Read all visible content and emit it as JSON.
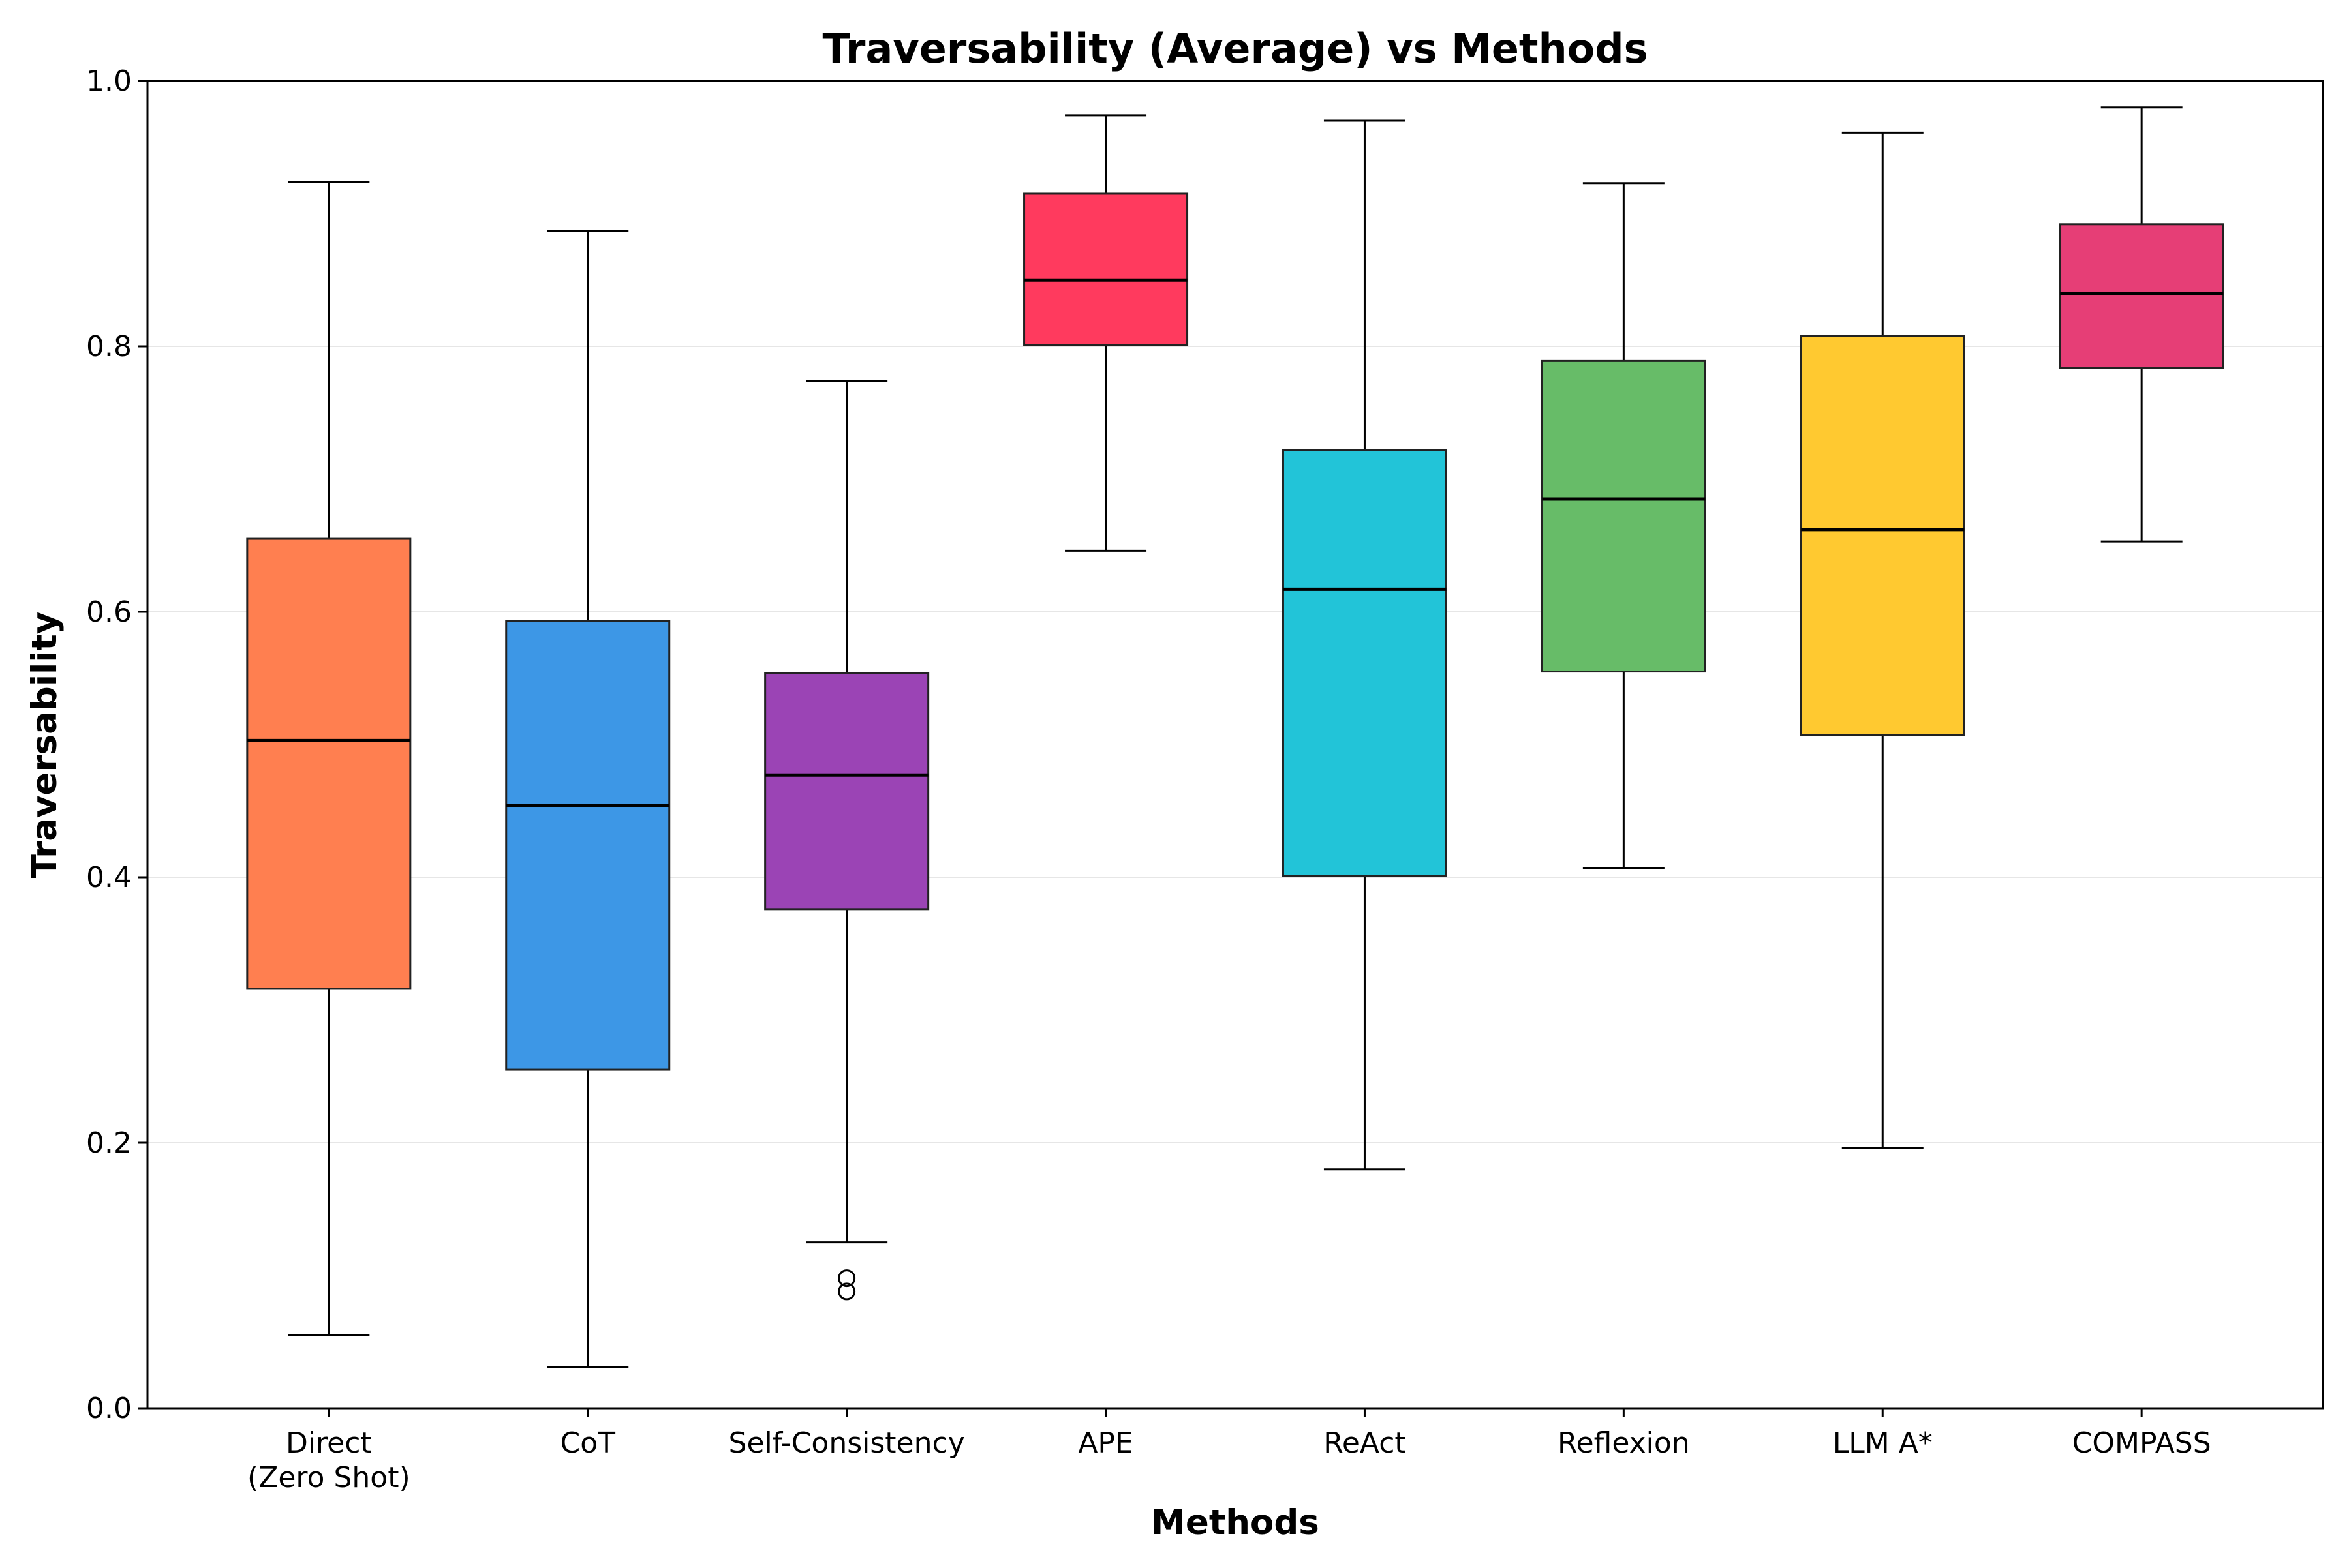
{
  "chart_data": {
    "type": "box",
    "title": "Traversability (Average) vs Methods",
    "xlabel": "Methods",
    "ylabel": "Traversability",
    "ylim": [
      0,
      1
    ],
    "yticks": [
      "0.0",
      "0.2",
      "0.4",
      "0.6",
      "0.8",
      "1.0"
    ],
    "ytick_values": [
      0,
      0.2,
      0.4,
      0.6,
      0.8,
      1.0
    ],
    "grid": "horizontal",
    "categories": [
      {
        "label_lines": [
          "Direct",
          "(Zero Shot)"
        ],
        "whisker_low": 0.055,
        "q1": 0.316,
        "median": 0.503,
        "q3": 0.655,
        "whisker_high": 0.924,
        "outliers": [],
        "color": "#FF7F50"
      },
      {
        "label_lines": [
          "CoT"
        ],
        "whisker_low": 0.031,
        "q1": 0.255,
        "median": 0.454,
        "q3": 0.593,
        "whisker_high": 0.887,
        "outliers": [],
        "color": "#3D97E6"
      },
      {
        "label_lines": [
          "Self-Consistency"
        ],
        "whisker_low": 0.125,
        "q1": 0.376,
        "median": 0.477,
        "q3": 0.554,
        "whisker_high": 0.774,
        "outliers": [
          0.088,
          0.098
        ],
        "color": "#9B44B5"
      },
      {
        "label_lines": [
          "APE"
        ],
        "whisker_low": 0.646,
        "q1": 0.801,
        "median": 0.85,
        "q3": 0.915,
        "whisker_high": 0.974,
        "outliers": [],
        "color": "#FF3A5E"
      },
      {
        "label_lines": [
          "ReAct"
        ],
        "whisker_low": 0.18,
        "q1": 0.401,
        "median": 0.617,
        "q3": 0.722,
        "whisker_high": 0.97,
        "outliers": [],
        "color": "#22C4D8"
      },
      {
        "label_lines": [
          "Reflexion"
        ],
        "whisker_low": 0.407,
        "q1": 0.555,
        "median": 0.685,
        "q3": 0.789,
        "whisker_high": 0.923,
        "outliers": [],
        "color": "#67BC68"
      },
      {
        "label_lines": [
          "LLM A*"
        ],
        "whisker_low": 0.196,
        "q1": 0.507,
        "median": 0.662,
        "q3": 0.808,
        "whisker_high": 0.961,
        "outliers": [],
        "color": "#FFC930"
      },
      {
        "label_lines": [
          "COMPASS"
        ],
        "whisker_low": 0.653,
        "q1": 0.784,
        "median": 0.84,
        "q3": 0.892,
        "whisker_high": 0.98,
        "outliers": [],
        "color": "#E63E76"
      }
    ]
  }
}
